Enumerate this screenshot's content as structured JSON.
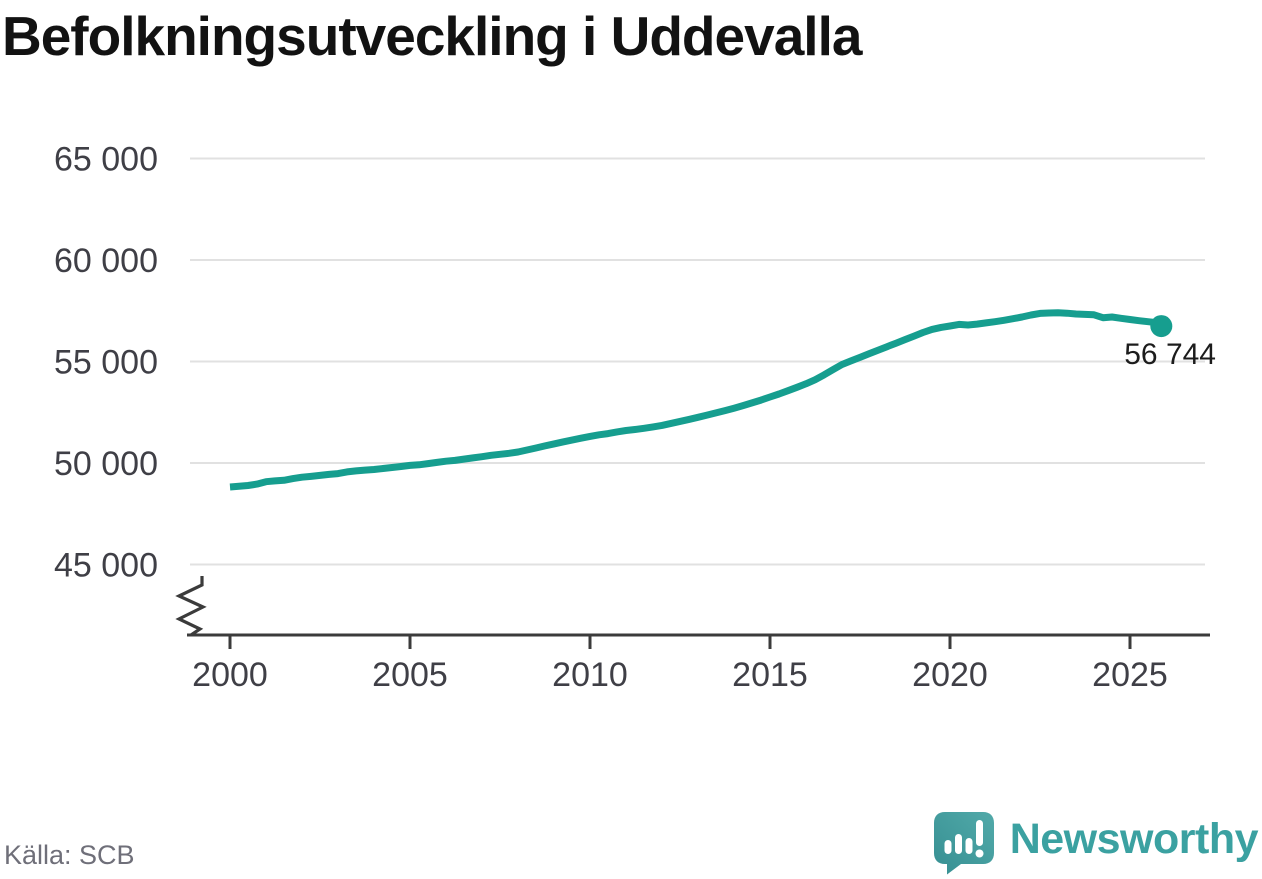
{
  "title": "Befolkningsutveckling i Uddevalla",
  "chart_data": {
    "type": "line",
    "title": "Befolkningsutveckling i Uddevalla",
    "xlabel": "",
    "ylabel": "",
    "x_range": [
      2000,
      2027.2
    ],
    "y_range_shown": [
      45000,
      65000
    ],
    "y_axis_break": true,
    "grid": true,
    "legend_position": "none",
    "x_ticks": [
      2000,
      2005,
      2010,
      2015,
      2020,
      2025
    ],
    "y_ticks": [
      {
        "value": 65000,
        "label": "65 000"
      },
      {
        "value": 60000,
        "label": "60 000"
      },
      {
        "value": 55000,
        "label": "55 000"
      },
      {
        "value": 50000,
        "label": "50 000"
      },
      {
        "value": 45000,
        "label": "45 000"
      }
    ],
    "end_label": "56 744",
    "end_value": 56744,
    "line_color": "#169e8f",
    "series": [
      {
        "name": "Befolkning",
        "points": [
          [
            2000.0,
            48820
          ],
          [
            2000.25,
            48850
          ],
          [
            2000.5,
            48890
          ],
          [
            2000.75,
            48960
          ],
          [
            2001.0,
            49080
          ],
          [
            2001.25,
            49120
          ],
          [
            2001.5,
            49150
          ],
          [
            2001.75,
            49230
          ],
          [
            2002.0,
            49300
          ],
          [
            2002.25,
            49340
          ],
          [
            2002.5,
            49390
          ],
          [
            2002.75,
            49440
          ],
          [
            2003.0,
            49480
          ],
          [
            2003.25,
            49560
          ],
          [
            2003.5,
            49610
          ],
          [
            2003.75,
            49650
          ],
          [
            2004.0,
            49680
          ],
          [
            2004.25,
            49730
          ],
          [
            2004.5,
            49780
          ],
          [
            2004.75,
            49830
          ],
          [
            2005.0,
            49880
          ],
          [
            2005.25,
            49910
          ],
          [
            2005.5,
            49970
          ],
          [
            2005.75,
            50030
          ],
          [
            2006.0,
            50090
          ],
          [
            2006.25,
            50130
          ],
          [
            2006.5,
            50190
          ],
          [
            2006.75,
            50250
          ],
          [
            2007.0,
            50310
          ],
          [
            2007.25,
            50380
          ],
          [
            2007.5,
            50430
          ],
          [
            2007.75,
            50480
          ],
          [
            2008.0,
            50540
          ],
          [
            2008.25,
            50640
          ],
          [
            2008.5,
            50740
          ],
          [
            2008.75,
            50840
          ],
          [
            2009.0,
            50940
          ],
          [
            2009.25,
            51040
          ],
          [
            2009.5,
            51130
          ],
          [
            2009.75,
            51220
          ],
          [
            2010.0,
            51310
          ],
          [
            2010.25,
            51390
          ],
          [
            2010.5,
            51450
          ],
          [
            2010.75,
            51530
          ],
          [
            2011.0,
            51600
          ],
          [
            2011.25,
            51650
          ],
          [
            2011.5,
            51710
          ],
          [
            2011.75,
            51780
          ],
          [
            2012.0,
            51850
          ],
          [
            2012.25,
            51950
          ],
          [
            2012.5,
            52050
          ],
          [
            2012.75,
            52150
          ],
          [
            2013.0,
            52250
          ],
          [
            2013.25,
            52360
          ],
          [
            2013.5,
            52470
          ],
          [
            2013.75,
            52580
          ],
          [
            2014.0,
            52700
          ],
          [
            2014.25,
            52830
          ],
          [
            2014.5,
            52960
          ],
          [
            2014.75,
            53100
          ],
          [
            2015.0,
            53250
          ],
          [
            2015.25,
            53400
          ],
          [
            2015.5,
            53560
          ],
          [
            2015.75,
            53730
          ],
          [
            2016.0,
            53900
          ],
          [
            2016.25,
            54100
          ],
          [
            2016.5,
            54340
          ],
          [
            2016.75,
            54600
          ],
          [
            2017.0,
            54850
          ],
          [
            2017.25,
            55030
          ],
          [
            2017.5,
            55200
          ],
          [
            2017.75,
            55380
          ],
          [
            2018.0,
            55550
          ],
          [
            2018.25,
            55730
          ],
          [
            2018.5,
            55900
          ],
          [
            2018.75,
            56080
          ],
          [
            2019.0,
            56250
          ],
          [
            2019.25,
            56430
          ],
          [
            2019.5,
            56580
          ],
          [
            2019.75,
            56680
          ],
          [
            2020.0,
            56750
          ],
          [
            2020.25,
            56830
          ],
          [
            2020.5,
            56800
          ],
          [
            2020.75,
            56840
          ],
          [
            2021.0,
            56900
          ],
          [
            2021.25,
            56960
          ],
          [
            2021.5,
            57030
          ],
          [
            2021.75,
            57110
          ],
          [
            2022.0,
            57190
          ],
          [
            2022.25,
            57290
          ],
          [
            2022.5,
            57370
          ],
          [
            2022.75,
            57390
          ],
          [
            2023.0,
            57400
          ],
          [
            2023.25,
            57380
          ],
          [
            2023.5,
            57340
          ],
          [
            2023.75,
            57320
          ],
          [
            2024.0,
            57300
          ],
          [
            2024.25,
            57160
          ],
          [
            2024.5,
            57190
          ],
          [
            2024.75,
            57130
          ],
          [
            2025.0,
            57070
          ],
          [
            2025.25,
            57010
          ],
          [
            2025.5,
            56960
          ],
          [
            2025.7,
            56920
          ],
          [
            2025.87,
            56744
          ]
        ]
      }
    ]
  },
  "footer": {
    "source": "Källa: SCB",
    "brand": "Newsworthy"
  },
  "colors": {
    "line": "#169e8f",
    "brand_teal": "#3ba1a1",
    "icon_teal_dark": "#368f92",
    "icon_teal_light": "#4fa7a7",
    "grid": "#e1e1e1",
    "axis": "#3b3b3b",
    "tick_text": "#3f3f46",
    "end_label_text": "#1c1c1c"
  }
}
